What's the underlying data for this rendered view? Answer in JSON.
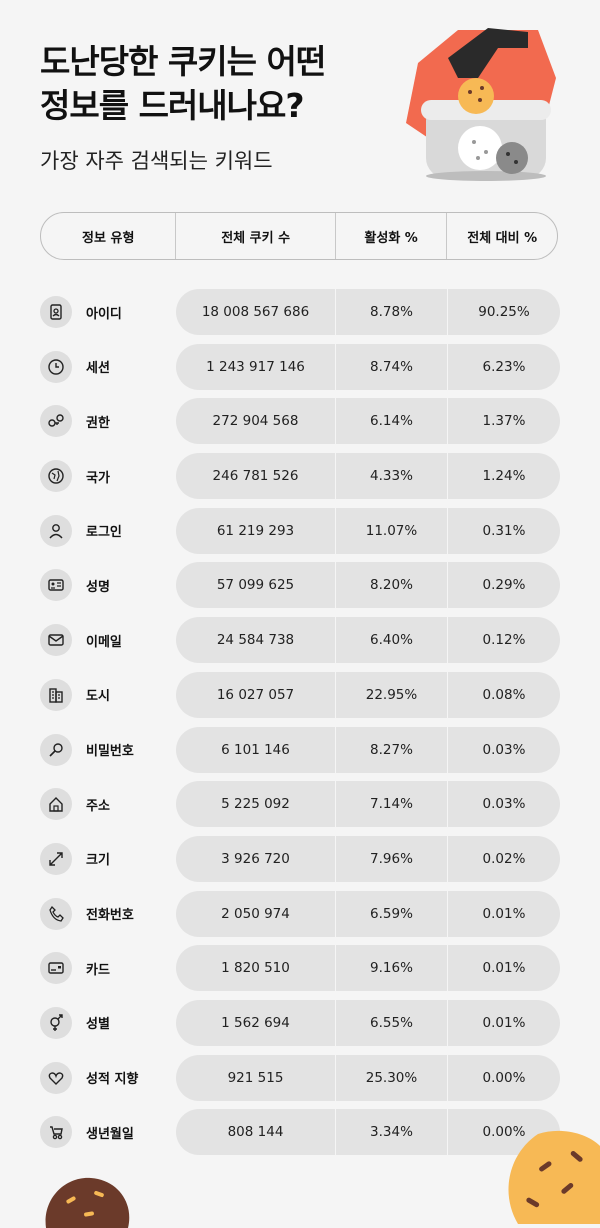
{
  "header": {
    "title_line1": "도난당한 쿠키는 어떤",
    "title_line2": "정보를 드러내나요?",
    "subtitle": "가장 자주 검색되는 키워드"
  },
  "table": {
    "columns": [
      "정보 유형",
      "전체 쿠키 수",
      "활성화 %",
      "전체 대비 %"
    ],
    "rows": [
      {
        "icon": "id-badge-icon",
        "label": "아이디",
        "total": "18 008 567 686",
        "active": "8.78%",
        "share": "90.25%"
      },
      {
        "icon": "clock-icon",
        "label": "세션",
        "total": "1 243 917 146",
        "active": "8.74%",
        "share": "6.23%"
      },
      {
        "icon": "key-icon",
        "label": "권한",
        "total": "272 904 568",
        "active": "6.14%",
        "share": "1.37%"
      },
      {
        "icon": "globe-icon",
        "label": "국가",
        "total": "246 781 526",
        "active": "4.33%",
        "share": "1.24%"
      },
      {
        "icon": "user-icon",
        "label": "로그인",
        "total": "61 219 293",
        "active": "11.07%",
        "share": "0.31%"
      },
      {
        "icon": "id-card-icon",
        "label": "성명",
        "total": "57 099 625",
        "active": "8.20%",
        "share": "0.29%"
      },
      {
        "icon": "mail-icon",
        "label": "이메일",
        "total": "24 584 738",
        "active": "6.40%",
        "share": "0.12%"
      },
      {
        "icon": "building-icon",
        "label": "도시",
        "total": "16 027 057",
        "active": "22.95%",
        "share": "0.08%"
      },
      {
        "icon": "search-key-icon",
        "label": "비밀번호",
        "total": "6 101 146",
        "active": "8.27%",
        "share": "0.03%"
      },
      {
        "icon": "home-icon",
        "label": "주소",
        "total": "5 225 092",
        "active": "7.14%",
        "share": "0.03%"
      },
      {
        "icon": "resize-icon",
        "label": "크기",
        "total": "3 926 720",
        "active": "7.96%",
        "share": "0.02%"
      },
      {
        "icon": "phone-icon",
        "label": "전화번호",
        "total": "2 050 974",
        "active": "6.59%",
        "share": "0.01%"
      },
      {
        "icon": "credit-card-icon",
        "label": "카드",
        "total": "1 820 510",
        "active": "9.16%",
        "share": "0.01%"
      },
      {
        "icon": "gender-icon",
        "label": "성별",
        "total": "1 562 694",
        "active": "6.55%",
        "share": "0.01%"
      },
      {
        "icon": "heart-icon",
        "label": "성적 지향",
        "total": "921 515",
        "active": "25.30%",
        "share": "0.00%"
      },
      {
        "icon": "baby-carriage-icon",
        "label": "생년월일",
        "total": "808 144",
        "active": "3.34%",
        "share": "0.00%"
      }
    ]
  },
  "colors": {
    "background": "#f5f5f5",
    "pill": "#e3e3e3",
    "accent": "#f26a4f",
    "cookie_light": "#f7b955",
    "cookie_dark": "#6b3a2a"
  }
}
